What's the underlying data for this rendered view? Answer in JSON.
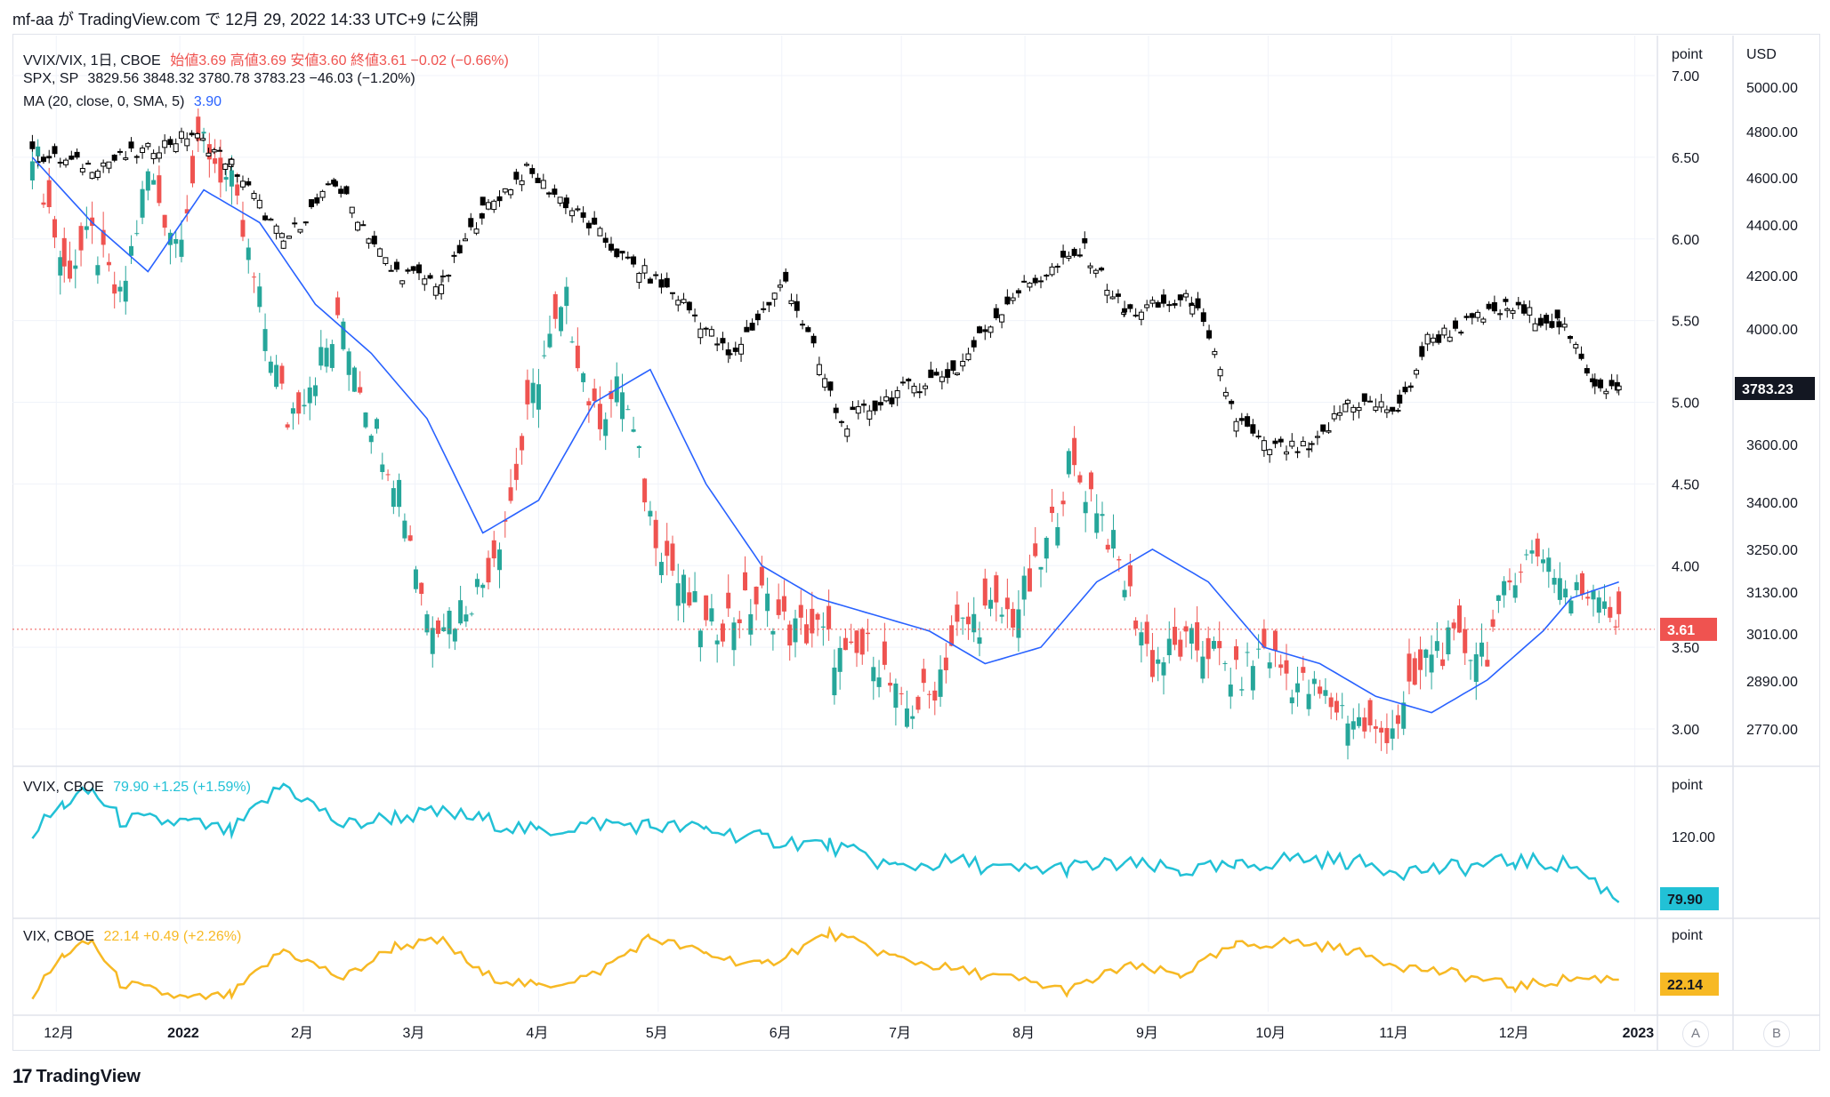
{
  "header": {
    "text": "mf-aa が TradingView.com で 12月 29, 2022 14:33 UTC+9 に公開"
  },
  "legend_main": {
    "vvix_vix_symbol": "VVIX/VIX, 1日, CBOE",
    "vvix_vix_ohlc": "始値3.69 高値3.69 安値3.60 終値3.61 −0.02 (−0.66%)",
    "spx_symbol": "SPX, SP",
    "spx_values": "3829.56  3848.32  3780.78  3783.23  −46.03 (−1.20%)",
    "ma_label": "MA (20, close, 0, SMA, 5)",
    "ma_value": "3.90"
  },
  "legend_vvix": {
    "symbol": "VVIX, CBOE",
    "value": "79.90  +1.25 (+1.59%)"
  },
  "legend_vix": {
    "symbol": "VIX, CBOE",
    "value": "22.14  +0.49 (+2.26%)"
  },
  "axis": {
    "unit_point": "point",
    "unit_usd": "USD",
    "vvix_unit": "point",
    "vix_unit": "point",
    "last_vvix_vix": "3.61",
    "last_spx": "3783.23",
    "last_vvix": "79.90",
    "last_vix": "22.14",
    "vvix_tick": "120.00",
    "btn_a": "A",
    "btn_b": "B"
  },
  "footer": {
    "brand": "TradingView",
    "logo": "17"
  },
  "colors": {
    "up": "#26a69a",
    "down": "#ef5350",
    "spx": "#000000",
    "ma": "#2962ff",
    "vvix": "#22c1d6",
    "vix": "#f7b924",
    "grid": "#f0f3fa"
  },
  "chart_data": [
    {
      "type": "candlestick",
      "title": "VVIX/VIX, 1日, CBOE",
      "y_axis_left_label": "point",
      "ylim": [
        2.85,
        7.0
      ],
      "yticks": [
        3.0,
        3.5,
        4.0,
        4.5,
        5.0,
        5.5,
        6.0,
        6.5,
        7.0
      ],
      "x_ticks": [
        "12月",
        "2022",
        "2月",
        "3月",
        "4月",
        "5月",
        "6月",
        "7月",
        "8月",
        "9月",
        "10月",
        "11月",
        "12月",
        "2023"
      ],
      "series": [
        {
          "name": "VVIX/VIX, 1日, CBOE",
          "close_points": [
            [
              "2021-11-25",
              6.6
            ],
            [
              "2021-12-03",
              5.8
            ],
            [
              "2021-12-10",
              6.0
            ],
            [
              "2021-12-17",
              5.6
            ],
            [
              "2021-12-24",
              6.4
            ],
            [
              "2021-12-31",
              6.0
            ],
            [
              "2022-01-07",
              6.6
            ],
            [
              "2022-01-14",
              6.3
            ],
            [
              "2022-01-21",
              5.6
            ],
            [
              "2022-01-28",
              4.9
            ],
            [
              "2022-02-04",
              5.2
            ],
            [
              "2022-02-11",
              5.5
            ],
            [
              "2022-02-18",
              4.9
            ],
            [
              "2022-02-25",
              4.5
            ],
            [
              "2022-03-04",
              3.7
            ],
            [
              "2022-03-11",
              3.7
            ],
            [
              "2022-03-18",
              3.9
            ],
            [
              "2022-03-25",
              4.4
            ],
            [
              "2022-04-01",
              5.2
            ],
            [
              "2022-04-08",
              5.6
            ],
            [
              "2022-04-15",
              4.9
            ],
            [
              "2022-04-22",
              5.1
            ],
            [
              "2022-04-29",
              4.3
            ],
            [
              "2022-05-06",
              3.9
            ],
            [
              "2022-05-13",
              3.6
            ],
            [
              "2022-05-20",
              3.7
            ],
            [
              "2022-05-27",
              3.8
            ],
            [
              "2022-06-03",
              3.6
            ],
            [
              "2022-06-10",
              3.6
            ],
            [
              "2022-06-17",
              3.4
            ],
            [
              "2022-06-24",
              3.5
            ],
            [
              "2022-07-01",
              3.1
            ],
            [
              "2022-07-08",
              3.2
            ],
            [
              "2022-07-15",
              3.6
            ],
            [
              "2022-07-22",
              3.7
            ],
            [
              "2022-07-29",
              3.7
            ],
            [
              "2022-08-05",
              4.0
            ],
            [
              "2022-08-12",
              4.6
            ],
            [
              "2022-08-19",
              4.4
            ],
            [
              "2022-08-26",
              3.9
            ],
            [
              "2022-09-02",
              3.4
            ],
            [
              "2022-09-09",
              3.5
            ],
            [
              "2022-09-16",
              3.5
            ],
            [
              "2022-09-23",
              3.3
            ],
            [
              "2022-09-30",
              3.5
            ],
            [
              "2022-10-07",
              3.3
            ],
            [
              "2022-10-14",
              3.2
            ],
            [
              "2022-10-21",
              3.1
            ],
            [
              "2022-10-28",
              2.95
            ],
            [
              "2022-11-04",
              3.1
            ],
            [
              "2022-11-11",
              3.5
            ],
            [
              "2022-11-18",
              3.5
            ],
            [
              "2022-11-25",
              3.5
            ],
            [
              "2022-12-02",
              4.0
            ],
            [
              "2022-12-09",
              4.1
            ],
            [
              "2022-12-16",
              3.8
            ],
            [
              "2022-12-23",
              3.9
            ],
            [
              "2022-12-28",
              3.61
            ]
          ]
        },
        {
          "name": "MA (20, close, 0, SMA, 5)",
          "close_points": [
            [
              "2021-11-25",
              6.5
            ],
            [
              "2021-12-10",
              6.1
            ],
            [
              "2021-12-24",
              5.8
            ],
            [
              "2022-01-07",
              6.3
            ],
            [
              "2022-01-21",
              6.1
            ],
            [
              "2022-02-04",
              5.6
            ],
            [
              "2022-02-18",
              5.3
            ],
            [
              "2022-03-04",
              4.9
            ],
            [
              "2022-03-18",
              4.2
            ],
            [
              "2022-04-01",
              4.4
            ],
            [
              "2022-04-15",
              5.0
            ],
            [
              "2022-04-29",
              5.2
            ],
            [
              "2022-05-13",
              4.5
            ],
            [
              "2022-05-27",
              4.0
            ],
            [
              "2022-06-10",
              3.8
            ],
            [
              "2022-06-24",
              3.7
            ],
            [
              "2022-07-08",
              3.6
            ],
            [
              "2022-07-22",
              3.4
            ],
            [
              "2022-08-05",
              3.5
            ],
            [
              "2022-08-19",
              3.9
            ],
            [
              "2022-09-02",
              4.1
            ],
            [
              "2022-09-16",
              3.9
            ],
            [
              "2022-09-30",
              3.5
            ],
            [
              "2022-10-14",
              3.4
            ],
            [
              "2022-10-28",
              3.2
            ],
            [
              "2022-11-11",
              3.1
            ],
            [
              "2022-11-25",
              3.3
            ],
            [
              "2022-12-09",
              3.6
            ],
            [
              "2022-12-16",
              3.8
            ],
            [
              "2022-12-28",
              3.9
            ]
          ]
        }
      ]
    },
    {
      "type": "candlestick",
      "title": "SPX, SP",
      "y_axis_right_label": "USD",
      "yticks": [
        2770,
        2890,
        3010,
        3130,
        3250,
        3400,
        3600,
        4000,
        4200,
        4400,
        4600,
        4800,
        5000
      ],
      "series": [
        {
          "name": "SPX, SP",
          "close_points": [
            [
              "2021-11-25",
              4700
            ],
            [
              "2021-12-10",
              4650
            ],
            [
              "2021-12-24",
              4720
            ],
            [
              "2022-01-04",
              4790
            ],
            [
              "2022-01-14",
              4660
            ],
            [
              "2022-01-27",
              4330
            ],
            [
              "2022-02-09",
              4580
            ],
            [
              "2022-02-23",
              4220
            ],
            [
              "2022-03-08",
              4170
            ],
            [
              "2022-03-18",
              4460
            ],
            [
              "2022-03-29",
              4630
            ],
            [
              "2022-04-08",
              4490
            ],
            [
              "2022-04-22",
              4270
            ],
            [
              "2022-05-06",
              4120
            ],
            [
              "2022-05-19",
              3900
            ],
            [
              "2022-06-02",
              4180
            ],
            [
              "2022-06-16",
              3670
            ],
            [
              "2022-06-30",
              3780
            ],
            [
              "2022-07-15",
              3860
            ],
            [
              "2022-07-29",
              4130
            ],
            [
              "2022-08-16",
              4300
            ],
            [
              "2022-08-26",
              4060
            ],
            [
              "2022-09-12",
              4110
            ],
            [
              "2022-09-23",
              3690
            ],
            [
              "2022-09-30",
              3590
            ],
            [
              "2022-10-12",
              3580
            ],
            [
              "2022-10-21",
              3750
            ],
            [
              "2022-11-03",
              3720
            ],
            [
              "2022-11-10",
              3960
            ],
            [
              "2022-11-30",
              4080
            ],
            [
              "2022-12-13",
              4020
            ],
            [
              "2022-12-22",
              3820
            ],
            [
              "2022-12-28",
              3783.23
            ]
          ]
        }
      ]
    },
    {
      "type": "line",
      "title": "VVIX, CBOE",
      "yticks": [
        120
      ],
      "series": [
        {
          "name": "VVIX, CBOE",
          "x": [
            "2021-11-25",
            "2021-12-03",
            "2021-12-10",
            "2021-12-17",
            "2022-01-03",
            "2022-01-14",
            "2022-01-27",
            "2022-02-11",
            "2022-02-24",
            "2022-03-08",
            "2022-03-18",
            "2022-04-01",
            "2022-04-15",
            "2022-04-29",
            "2022-05-13",
            "2022-05-27",
            "2022-06-13",
            "2022-06-30",
            "2022-07-15",
            "2022-07-29",
            "2022-08-12",
            "2022-08-26",
            "2022-09-09",
            "2022-09-23",
            "2022-10-07",
            "2022-10-21",
            "2022-11-04",
            "2022-11-18",
            "2022-12-02",
            "2022-12-16",
            "2022-12-28"
          ],
          "values": [
            122,
            140,
            148,
            130,
            128,
            122,
            152,
            126,
            132,
            134,
            130,
            122,
            128,
            126,
            124,
            118,
            114,
            100,
            104,
            98,
            100,
            102,
            98,
            100,
            106,
            104,
            98,
            100,
            104,
            102,
            79.9
          ]
        }
      ]
    },
    {
      "type": "line",
      "title": "VIX, CBOE",
      "series": [
        {
          "name": "VIX, CBOE",
          "x": [
            "2021-11-25",
            "2021-12-03",
            "2021-12-10",
            "2021-12-17",
            "2022-01-03",
            "2022-01-14",
            "2022-01-27",
            "2022-02-11",
            "2022-02-24",
            "2022-03-08",
            "2022-03-18",
            "2022-04-01",
            "2022-04-15",
            "2022-04-29",
            "2022-05-13",
            "2022-05-27",
            "2022-06-13",
            "2022-06-30",
            "2022-07-15",
            "2022-07-29",
            "2022-08-12",
            "2022-08-26",
            "2022-09-09",
            "2022-09-23",
            "2022-10-07",
            "2022-10-21",
            "2022-11-04",
            "2022-11-18",
            "2022-12-02",
            "2022-12-16",
            "2022-12-28"
          ],
          "values": [
            18,
            28,
            31,
            21,
            17,
            18,
            29,
            22,
            30,
            31,
            23,
            20,
            23,
            32,
            28,
            25,
            33,
            27,
            24,
            22,
            19,
            25,
            23,
            30,
            31,
            29,
            25,
            23,
            20,
            22,
            22.14
          ]
        }
      ]
    }
  ]
}
